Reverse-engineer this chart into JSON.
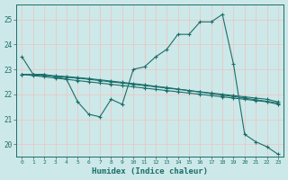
{
  "xlabel": "Humidex (Indice chaleur)",
  "xlim_min": -0.5,
  "xlim_max": 23.5,
  "ylim_min": 19.5,
  "ylim_max": 25.6,
  "xticks": [
    0,
    1,
    2,
    3,
    4,
    5,
    6,
    7,
    8,
    9,
    10,
    11,
    12,
    13,
    14,
    15,
    16,
    17,
    18,
    19,
    20,
    21,
    22,
    23
  ],
  "yticks": [
    20,
    21,
    22,
    23,
    24,
    25
  ],
  "bg_color": "#cde8e8",
  "line_color": "#1a6e6a",
  "grid_color": "#e8c8c8",
  "lines": [
    [
      23.5,
      22.8,
      22.8,
      22.7,
      22.6,
      21.7,
      21.2,
      21.1,
      21.8,
      21.6,
      23.0,
      23.1,
      23.5,
      23.8,
      24.4,
      24.4,
      24.9,
      24.9,
      25.2,
      23.2,
      20.4,
      20.1,
      19.9,
      19.6
    ],
    [
      22.8,
      22.75,
      22.7,
      22.65,
      22.6,
      22.55,
      22.5,
      22.45,
      22.4,
      22.35,
      22.3,
      22.25,
      22.2,
      22.15,
      22.1,
      22.05,
      22.0,
      21.95,
      21.9,
      21.85,
      21.8,
      21.75,
      21.7,
      21.6
    ],
    [
      22.8,
      22.78,
      22.75,
      22.72,
      22.68,
      22.65,
      22.6,
      22.55,
      22.5,
      22.45,
      22.4,
      22.35,
      22.3,
      22.25,
      22.2,
      22.15,
      22.1,
      22.05,
      22.0,
      21.95,
      21.9,
      21.85,
      21.8,
      21.7
    ],
    [
      22.8,
      22.79,
      22.77,
      22.74,
      22.71,
      22.67,
      22.63,
      22.58,
      22.53,
      22.48,
      22.43,
      22.38,
      22.32,
      22.27,
      22.21,
      22.15,
      22.09,
      22.03,
      21.97,
      21.91,
      21.85,
      21.78,
      21.72,
      21.65
    ]
  ]
}
